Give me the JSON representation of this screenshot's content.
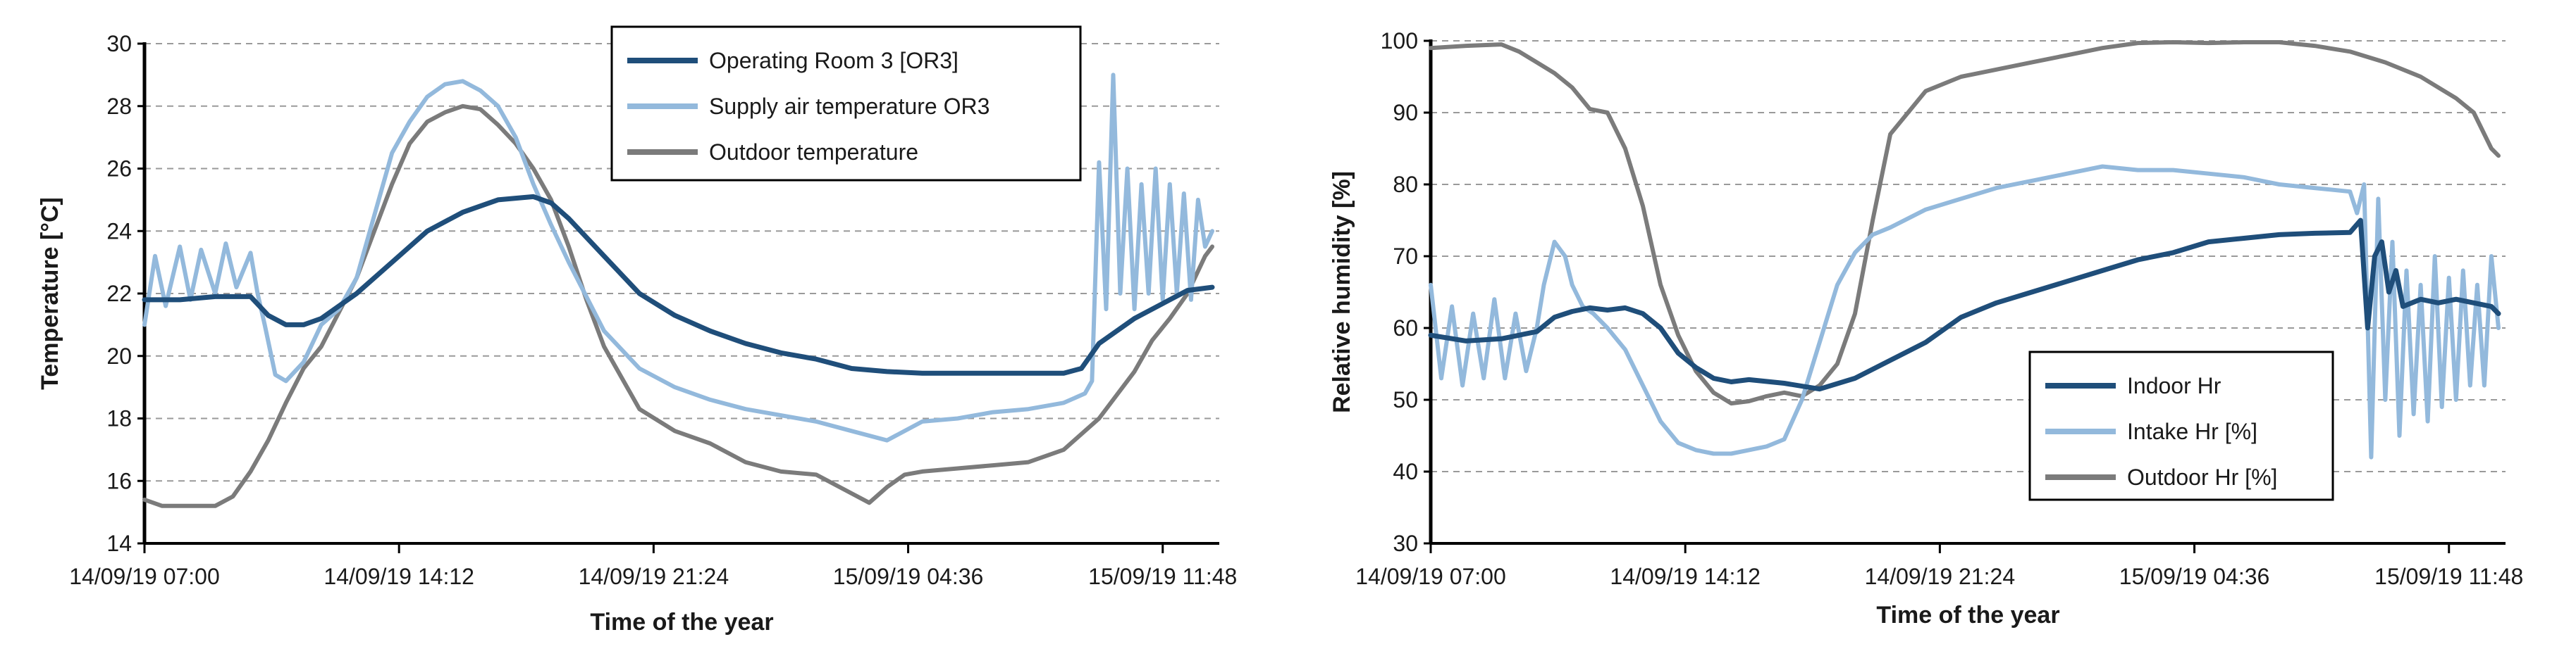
{
  "colors": {
    "dark_blue": "#1f4e7a",
    "light_blue": "#93b9dc",
    "gray": "#7b7b7b",
    "grid": "#9a9a9a",
    "axis": "#000000"
  },
  "chart_data": [
    {
      "type": "line",
      "xlabel": "Time of the year",
      "ylabel": "Temperature [°C]",
      "ylim": [
        14,
        30
      ],
      "yticks": [
        "14",
        "16",
        "18",
        "20",
        "22",
        "24",
        "26",
        "28",
        "30"
      ],
      "xlim_hours": [
        0,
        30.4
      ],
      "xticks": [
        "14/09/19 07:00",
        "14/09/19 14:12",
        "14/09/19 21:24",
        "15/09/19 04:36",
        "15/09/19 11:48"
      ],
      "grid": "horizontal dashed",
      "legend_position": "top-center",
      "series": [
        {
          "name": "Operating Room 3 [OR3]",
          "color": "dark_blue",
          "hours": [
            0,
            1,
            2,
            3,
            3.5,
            4,
            4.5,
            5,
            6,
            7,
            8,
            9,
            10,
            11,
            11.5,
            12,
            13,
            14,
            15,
            16,
            17,
            18,
            19,
            20,
            21,
            22,
            23,
            24,
            25,
            26,
            26.5,
            27,
            28,
            29,
            29.5,
            30.2
          ],
          "values": [
            21.8,
            21.8,
            21.9,
            21.9,
            21.3,
            21.0,
            21.0,
            21.2,
            22.0,
            23.0,
            24.0,
            24.6,
            25.0,
            25.1,
            24.9,
            24.4,
            23.2,
            22.0,
            21.3,
            20.8,
            20.4,
            20.1,
            19.9,
            19.6,
            19.5,
            19.45,
            19.45,
            19.45,
            19.45,
            19.45,
            19.6,
            20.4,
            21.2,
            21.8,
            22.1,
            22.2
          ]
        },
        {
          "name": "Supply air temperature OR3",
          "color": "light_blue",
          "hours": [
            0,
            0.3,
            0.6,
            1,
            1.3,
            1.6,
            2,
            2.3,
            2.6,
            3,
            3.2,
            3.4,
            3.7,
            4,
            4.5,
            5,
            5.5,
            6,
            6.5,
            7,
            7.5,
            8,
            8.5,
            9,
            9.5,
            10,
            10.5,
            11,
            11.5,
            12,
            13,
            14,
            15,
            16,
            17,
            18,
            19,
            20,
            21,
            22,
            23,
            24,
            25,
            26,
            26.6,
            26.8,
            27.0,
            27.2,
            27.4,
            27.6,
            27.8,
            28.0,
            28.2,
            28.4,
            28.6,
            28.8,
            29.0,
            29.2,
            29.4,
            29.6,
            29.8,
            30.0,
            30.2
          ],
          "values": [
            21.0,
            23.2,
            21.6,
            23.5,
            21.8,
            23.4,
            22.0,
            23.6,
            22.2,
            23.3,
            22.0,
            21.0,
            19.4,
            19.2,
            19.8,
            21.0,
            21.5,
            22.5,
            24.5,
            26.5,
            27.5,
            28.3,
            28.7,
            28.8,
            28.5,
            28.0,
            27.0,
            25.5,
            24.2,
            23.0,
            20.8,
            19.6,
            19.0,
            18.6,
            18.3,
            18.1,
            17.9,
            17.6,
            17.3,
            17.9,
            18.0,
            18.2,
            18.3,
            18.5,
            18.8,
            19.2,
            26.2,
            21.5,
            29.0,
            22.0,
            26.0,
            21.5,
            25.5,
            22.0,
            26.0,
            21.8,
            25.5,
            22.0,
            25.2,
            21.8,
            25.0,
            23.5,
            24.0
          ]
        },
        {
          "name": "Outdoor temperature",
          "color": "gray",
          "hours": [
            0,
            0.5,
            1,
            2,
            2.5,
            3,
            3.5,
            4,
            4.5,
            5,
            6,
            7,
            7.5,
            8,
            8.5,
            9,
            9.5,
            10,
            10.5,
            11,
            11.5,
            12,
            12.5,
            13,
            14,
            15,
            16,
            17,
            18,
            19,
            20,
            20.5,
            21,
            21.5,
            22,
            23,
            24,
            25,
            26,
            27,
            28,
            28.5,
            29,
            29.5,
            30,
            30.2
          ],
          "values": [
            15.4,
            15.2,
            15.2,
            15.2,
            15.5,
            16.3,
            17.3,
            18.5,
            19.6,
            20.3,
            22.5,
            25.5,
            26.8,
            27.5,
            27.8,
            28.0,
            27.9,
            27.4,
            26.8,
            26.0,
            25.0,
            23.5,
            21.8,
            20.3,
            18.3,
            17.6,
            17.2,
            16.6,
            16.3,
            16.2,
            15.6,
            15.3,
            15.8,
            16.2,
            16.3,
            16.4,
            16.5,
            16.6,
            17.0,
            18.0,
            19.5,
            20.5,
            21.2,
            22.0,
            23.2,
            23.5
          ]
        }
      ]
    },
    {
      "type": "line",
      "xlabel": "Time of the year",
      "ylabel": "Relative humidity [%]",
      "ylim": [
        30,
        100
      ],
      "yticks": [
        "30",
        "40",
        "50",
        "60",
        "70",
        "80",
        "90",
        "100"
      ],
      "xlim_hours": [
        0,
        30.4
      ],
      "xticks": [
        "14/09/19 07:00",
        "14/09/19 14:12",
        "14/09/19 21:24",
        "15/09/19 04:36",
        "15/09/19 11:48"
      ],
      "grid": "horizontal dashed",
      "legend_position": "bottom-center",
      "series": [
        {
          "name": "Indoor Hr",
          "color": "dark_blue",
          "hours": [
            0,
            1,
            2,
            3,
            3.5,
            4,
            4.5,
            5,
            5.5,
            6,
            6.5,
            7,
            7.5,
            8,
            8.5,
            9,
            10,
            11,
            12,
            13,
            14,
            15,
            16,
            17,
            18,
            19,
            20,
            21,
            22,
            23,
            24,
            25,
            26,
            26.3,
            26.5,
            26.7,
            26.9,
            27.1,
            27.3,
            27.5,
            28,
            28.5,
            29,
            29.5,
            30,
            30.2
          ],
          "values": [
            59.0,
            58.2,
            58.5,
            59.5,
            61.5,
            62.3,
            62.8,
            62.5,
            62.8,
            62.0,
            60.0,
            56.5,
            54.5,
            53.0,
            52.5,
            52.8,
            52.3,
            51.5,
            53.0,
            55.5,
            58.0,
            61.5,
            63.5,
            65.0,
            66.5,
            68.0,
            69.5,
            70.5,
            72.0,
            72.5,
            73.0,
            73.2,
            73.3,
            75.0,
            60.0,
            70.0,
            72.0,
            65.0,
            68.0,
            63.0,
            64.0,
            63.5,
            64.0,
            63.5,
            63.0,
            62.0
          ]
        },
        {
          "name": "Intake Hr [%]",
          "color": "light_blue",
          "hours": [
            0,
            0.3,
            0.6,
            0.9,
            1.2,
            1.5,
            1.8,
            2.1,
            2.4,
            2.7,
            3.0,
            3.2,
            3.5,
            3.8,
            4.0,
            4.3,
            4.6,
            5,
            5.5,
            6,
            6.5,
            7,
            7.5,
            8,
            8.5,
            9,
            9.5,
            10,
            10.5,
            11,
            11.5,
            12,
            12.5,
            13,
            14,
            15,
            16,
            17,
            18,
            19,
            20,
            21,
            22,
            23,
            24,
            25,
            26,
            26.2,
            26.4,
            26.6,
            26.8,
            27.0,
            27.2,
            27.4,
            27.6,
            27.8,
            28.0,
            28.2,
            28.4,
            28.6,
            28.8,
            29.0,
            29.2,
            29.4,
            29.6,
            29.8,
            30.0,
            30.2
          ],
          "values": [
            66.0,
            53.0,
            63.0,
            52.0,
            62.0,
            53.0,
            64.0,
            53.0,
            62.0,
            54.0,
            60.0,
            66.0,
            72.0,
            70.0,
            66.0,
            63.0,
            62.0,
            60.0,
            57.0,
            52.0,
            47.0,
            44.0,
            43.0,
            42.5,
            42.5,
            43.0,
            43.5,
            44.5,
            50.0,
            58.0,
            66.0,
            70.5,
            73.0,
            74.0,
            76.5,
            78.0,
            79.5,
            80.5,
            81.5,
            82.5,
            82.0,
            82.0,
            81.5,
            81.0,
            80.0,
            79.5,
            79.0,
            76.0,
            80.0,
            42.0,
            78.0,
            50.0,
            72.0,
            45.0,
            68.0,
            48.0,
            66.0,
            47.0,
            70.0,
            49.0,
            67.0,
            50.0,
            68.0,
            52.0,
            66.0,
            52.0,
            70.0,
            60.0
          ]
        },
        {
          "name": "Outdoor Hr [%]",
          "color": "gray",
          "hours": [
            0,
            1,
            2,
            2.5,
            3,
            3.5,
            4,
            4.5,
            5,
            5.5,
            6,
            6.5,
            7,
            7.5,
            8,
            8.5,
            9,
            9.5,
            10,
            10.5,
            11,
            11.5,
            12,
            12.5,
            13,
            14,
            15,
            16,
            17,
            18,
            19,
            20,
            21,
            22,
            23,
            24,
            25,
            26,
            27,
            28,
            29,
            29.5,
            30,
            30.2
          ],
          "values": [
            99.0,
            99.3,
            99.5,
            98.5,
            97.0,
            95.5,
            93.5,
            90.5,
            90.0,
            85.0,
            77.0,
            66.0,
            59.0,
            54.0,
            51.0,
            49.5,
            49.8,
            50.5,
            51.0,
            50.5,
            52.0,
            55.0,
            62.0,
            75.0,
            87.0,
            93.0,
            95.0,
            96.0,
            97.0,
            98.0,
            99.0,
            99.7,
            99.8,
            99.7,
            99.8,
            99.8,
            99.3,
            98.5,
            97.0,
            95.0,
            92.0,
            90.0,
            85.0,
            84.0
          ]
        }
      ]
    }
  ]
}
